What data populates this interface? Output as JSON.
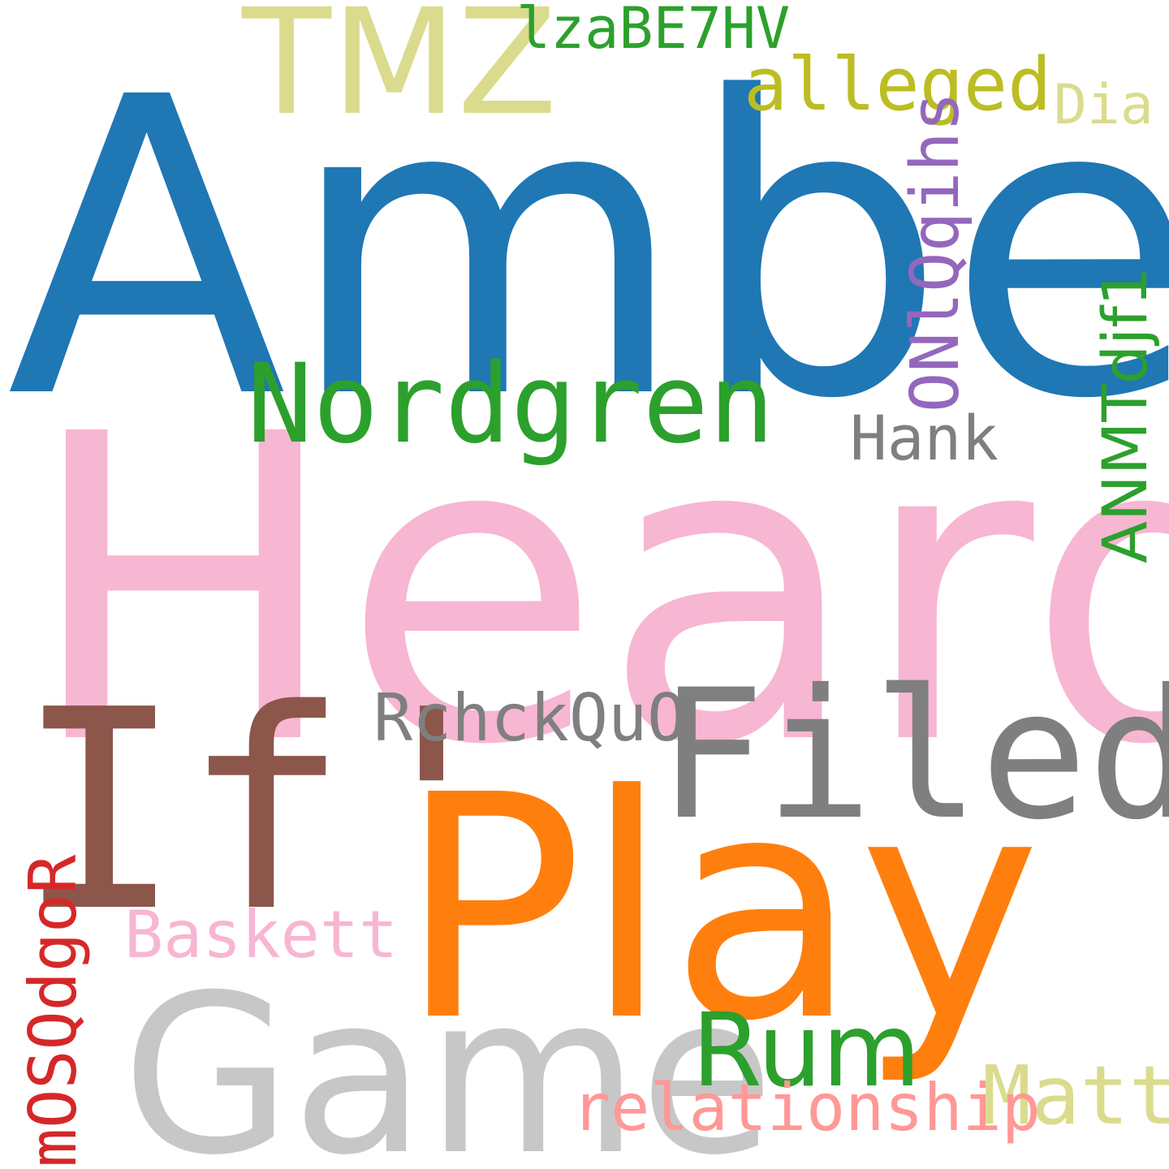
{
  "words": {
    "amber": {
      "text": "Amber",
      "color": "#1f77b4"
    },
    "heard": {
      "text": "Heard",
      "color": "#f7b6d2"
    },
    "if": {
      "text": "If'",
      "color": "#8c564b"
    },
    "play": {
      "text": "Play",
      "color": "#ff7f0e"
    },
    "game": {
      "text": "Game",
      "color": "#c7c7c7"
    },
    "filed": {
      "text": "Filed",
      "color": "#7f7f7f"
    },
    "tmz": {
      "text": "TMZ",
      "color": "#dbdb8d"
    },
    "nordgren": {
      "text": "Nordgren",
      "color": "#2ca02c"
    },
    "rum": {
      "text": "Rum",
      "color": "#2ca02c"
    },
    "matt": {
      "text": "Matt",
      "color": "#dbdb8d"
    },
    "relationship": {
      "text": "relationship",
      "color": "#ff9896"
    },
    "alleged": {
      "text": "alleged",
      "color": "#bcbd22"
    },
    "rchck": {
      "text": "RchckQuO",
      "color": "#7f7f7f"
    },
    "baskett": {
      "text": "Baskett",
      "color": "#f7b6d2"
    },
    "hank": {
      "text": "Hank",
      "color": "#7f7f7f"
    },
    "lza": {
      "text": "lzaBE7HV",
      "color": "#2ca02c"
    },
    "dia": {
      "text": "Dia",
      "color": "#dbdb8d"
    },
    "onl": {
      "text": "ONlQqihs",
      "color": "#9467bd"
    },
    "anmt": {
      "text": "ANMTdjf1",
      "color": "#2ca02c"
    },
    "mosq": {
      "text": "mOSQdgoR",
      "color": "#d62728"
    }
  }
}
